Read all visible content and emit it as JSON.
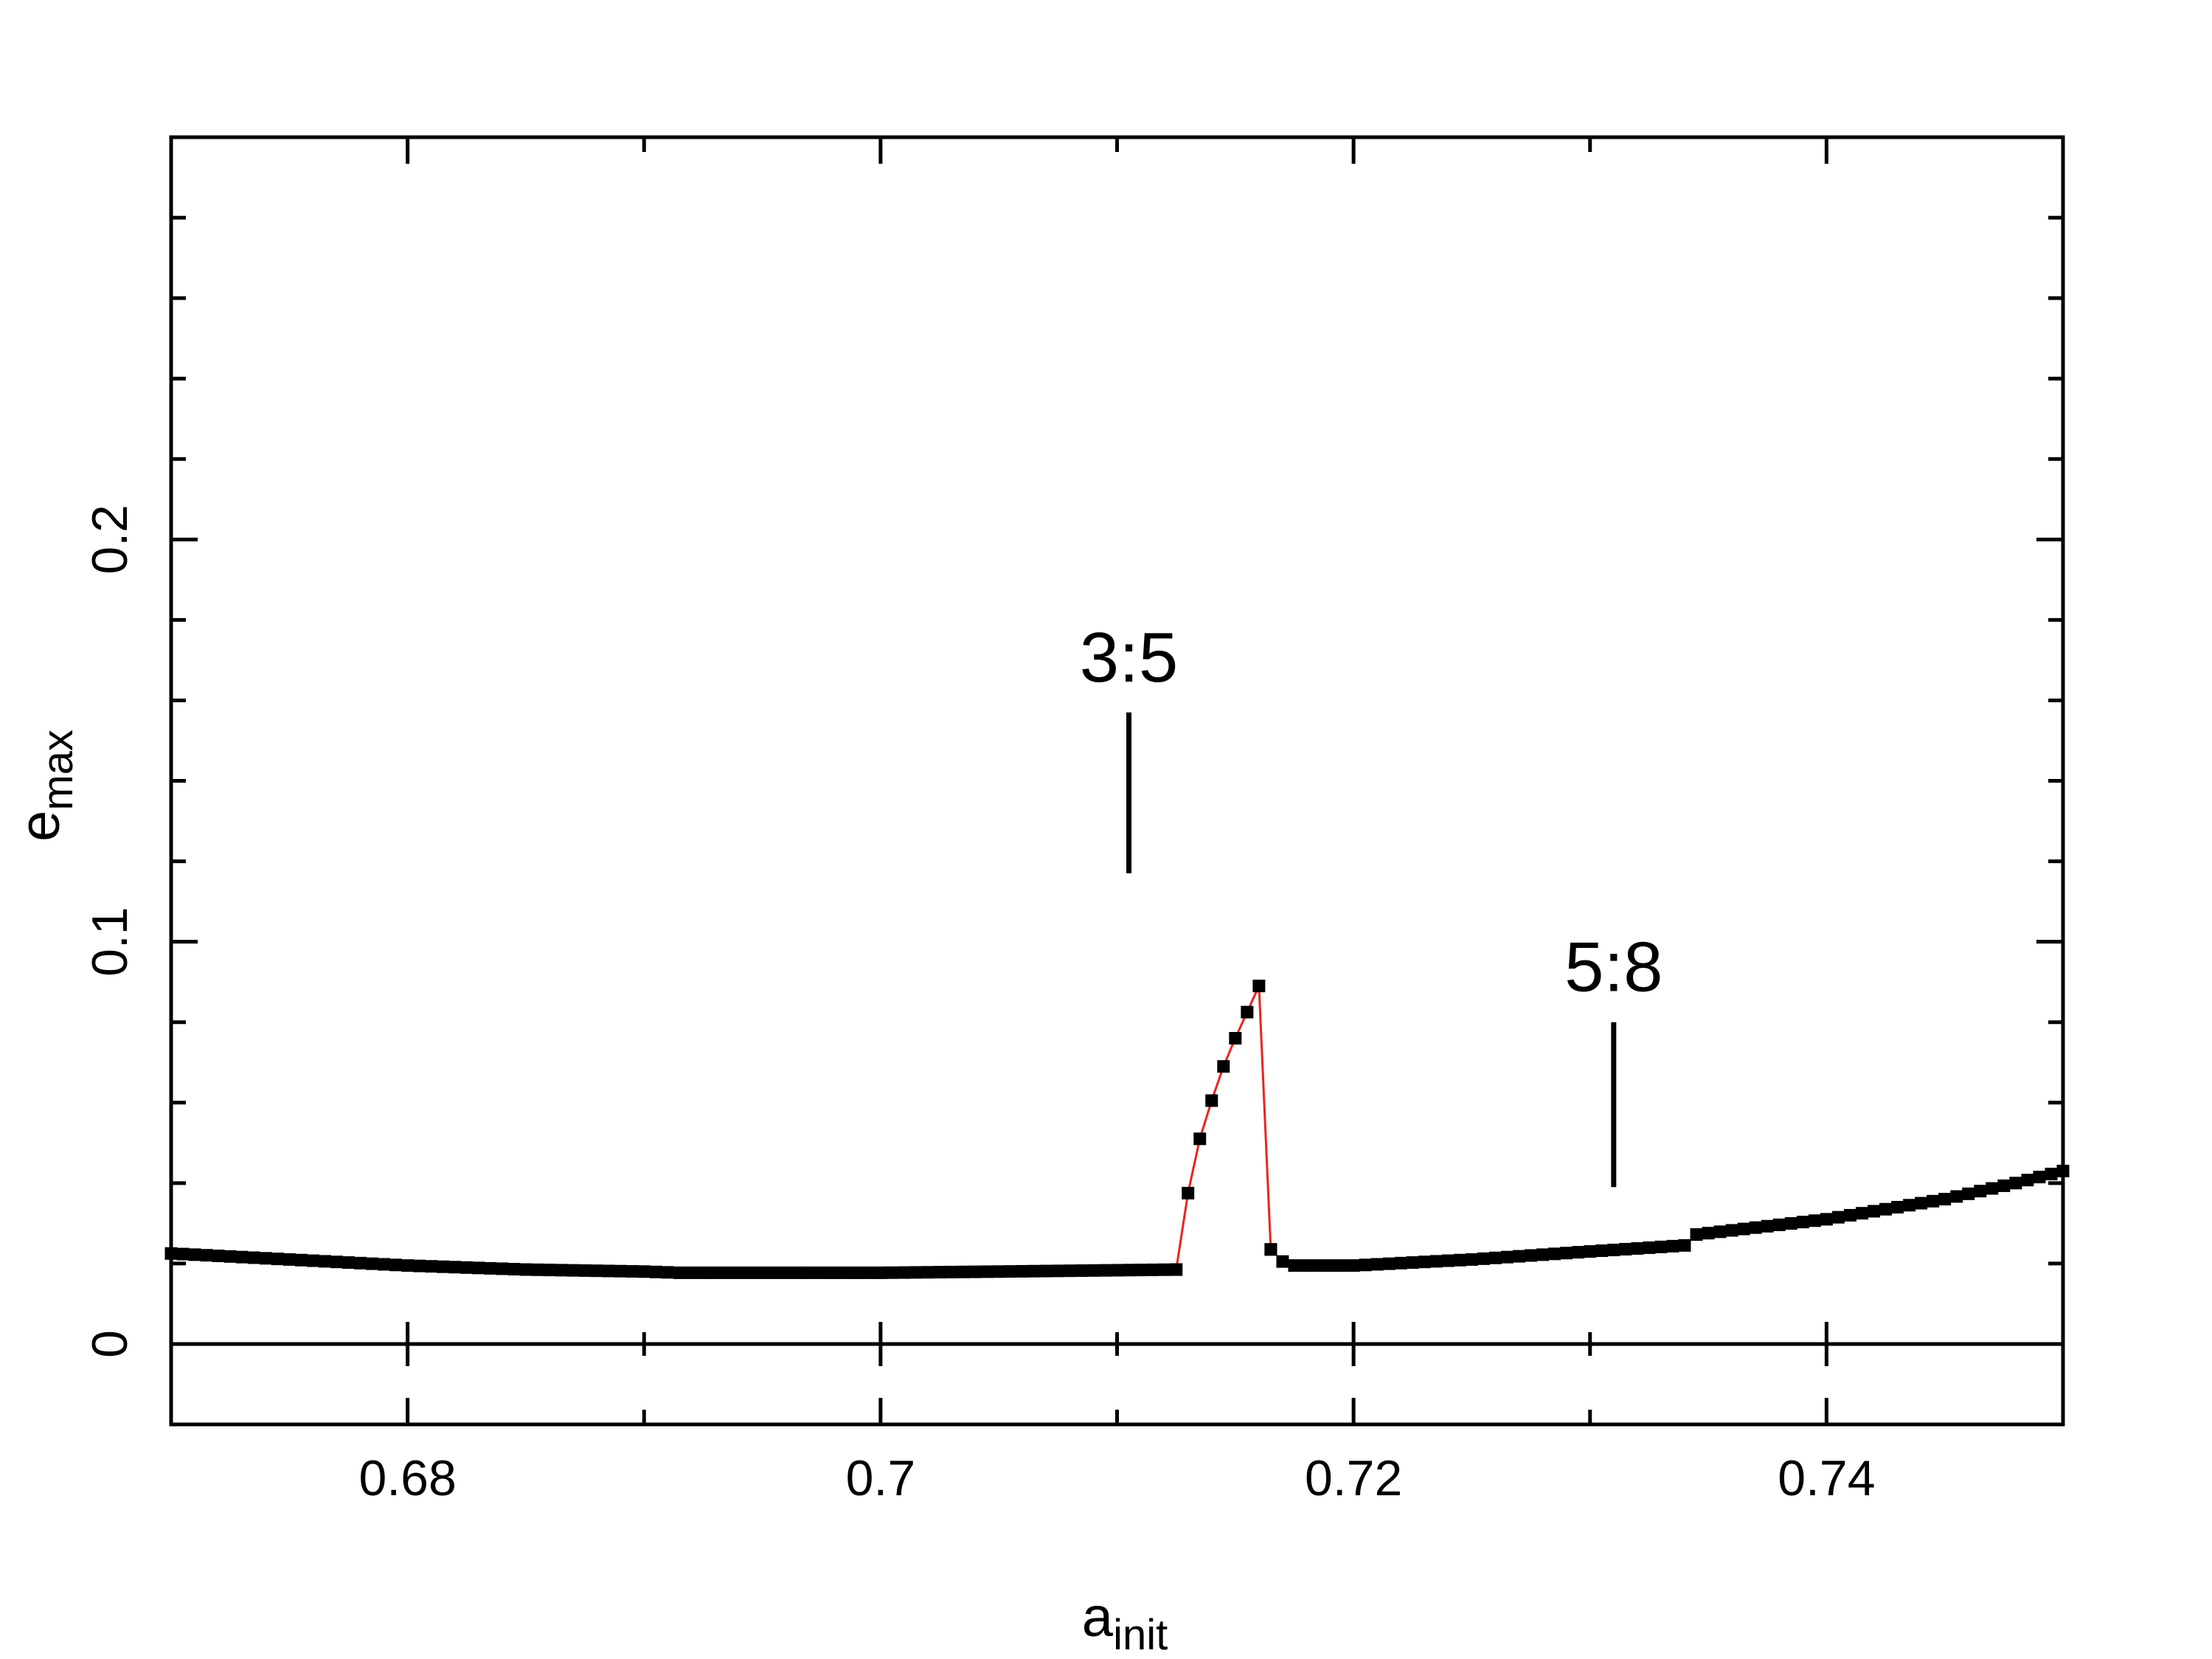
{
  "chart_data": {
    "type": "scatter",
    "title": "",
    "xlabel": {
      "base": "a",
      "sub": "init"
    },
    "ylabel": {
      "base": "e",
      "sub": "max"
    },
    "xlim": [
      0.67,
      0.75
    ],
    "ylim": [
      -0.02,
      0.3
    ],
    "x_major_ticks": [
      0.68,
      0.7,
      0.72,
      0.74
    ],
    "x_tick_labels": [
      "0.68",
      "0.7",
      "0.72",
      "0.74"
    ],
    "x_minor_ticks": [
      0.69,
      0.71,
      0.73
    ],
    "y_major_ticks": [
      0,
      0.1,
      0.2
    ],
    "y_tick_labels": [
      "0",
      "0.1",
      "0.2"
    ],
    "y_minor_ticks": [
      0.02,
      0.04,
      0.06,
      0.08,
      0.12,
      0.14,
      0.16,
      0.18,
      0.22,
      0.24,
      0.26,
      0.28
    ],
    "zero_line": 0,
    "grid": false,
    "legend": "none",
    "marker_color": "#000000",
    "resonance_line_color": "#e8251e",
    "annotations": [
      {
        "text": "3:5",
        "x": 0.7105,
        "y_top": 0.157,
        "y_bottom": 0.117
      },
      {
        "text": "5:8",
        "x": 0.731,
        "y_top": 0.08,
        "y_bottom": 0.039
      }
    ],
    "series": [
      {
        "style": "markers",
        "segments": [
          {
            "x_start": 0.67,
            "x_end": 0.7125,
            "step": 0.0005,
            "anchors": [
              [
                0.67,
                0.0225
              ],
              [
                0.675,
                0.021
              ],
              [
                0.68,
                0.0195
              ],
              [
                0.685,
                0.0185
              ],
              [
                0.69,
                0.018
              ],
              [
                0.6915,
                0.0177
              ],
              [
                0.7,
                0.0177
              ],
              [
                0.705,
                0.018
              ],
              [
                0.7125,
                0.0185
              ]
            ]
          },
          {
            "x_start": 0.7165,
            "x_end": 0.75,
            "step": 0.0005,
            "anchors": [
              [
                0.7165,
                0.0235
              ],
              [
                0.717,
                0.0205
              ],
              [
                0.7175,
                0.0195
              ],
              [
                0.72,
                0.0195
              ],
              [
                0.725,
                0.021
              ],
              [
                0.73,
                0.023
              ],
              [
                0.734,
                0.0245
              ],
              [
                0.7342,
                0.027
              ],
              [
                0.74,
                0.031
              ],
              [
                0.745,
                0.036
              ],
              [
                0.748,
                0.04
              ],
              [
                0.75,
                0.043
              ]
            ]
          }
        ]
      },
      {
        "style": "line+markers",
        "points": [
          [
            0.7125,
            0.0185
          ],
          [
            0.713,
            0.0375
          ],
          [
            0.7135,
            0.051
          ],
          [
            0.714,
            0.0605
          ],
          [
            0.7145,
            0.069
          ],
          [
            0.715,
            0.076
          ],
          [
            0.7155,
            0.0825
          ],
          [
            0.716,
            0.089
          ],
          [
            0.7165,
            0.0235
          ]
        ]
      }
    ]
  }
}
